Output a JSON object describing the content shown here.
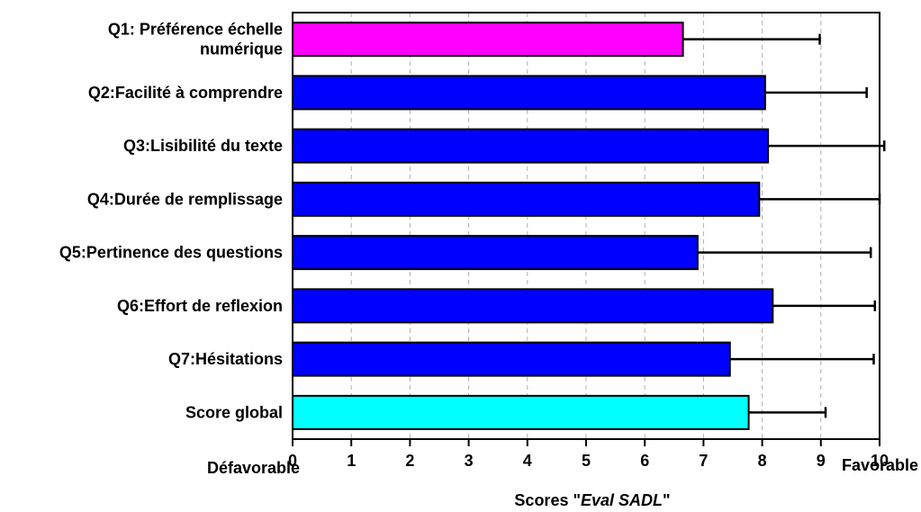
{
  "chart_data": {
    "type": "bar",
    "orientation": "horizontal",
    "categories": [
      [
        "Q1: Préférence échelle",
        "numérique"
      ],
      [
        "Q2:Facilité à comprendre"
      ],
      [
        "Q3:Lisibilité du texte"
      ],
      [
        "Q4:Durée de remplissage"
      ],
      [
        "Q5:Pertinence des questions"
      ],
      [
        "Q6:Effort de reflexion"
      ],
      [
        "Q7:Hésitations"
      ],
      [
        "Score global"
      ]
    ],
    "values": [
      6.65,
      8.05,
      8.1,
      7.95,
      6.9,
      8.18,
      7.45,
      7.77
    ],
    "error_upper": [
      8.98,
      9.78,
      10.08,
      10.0,
      9.85,
      9.92,
      9.9,
      9.08
    ],
    "colors": [
      "#ff00ff",
      "#0000ff",
      "#0000ff",
      "#0000ff",
      "#0000ff",
      "#0000ff",
      "#0000ff",
      "#00ffff"
    ],
    "xlim": [
      0,
      10
    ],
    "xticks": [
      0,
      1,
      2,
      3,
      4,
      5,
      6,
      7,
      8,
      9,
      10
    ],
    "grid": "vertical-dashed",
    "xlabel_prefix": "Scores \"",
    "xlabel_italic": "Eval SADL",
    "xlabel_suffix": "\"",
    "left_end_label": "Défavorable",
    "right_end_label": "Favorable"
  }
}
